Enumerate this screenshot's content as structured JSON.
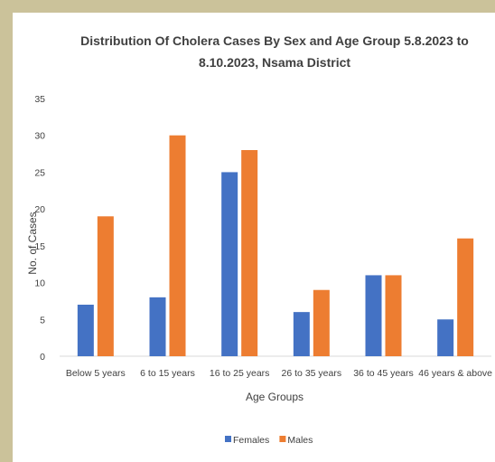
{
  "chart_data": {
    "type": "bar",
    "title_lines": [
      "Distribution Of Cholera Cases  By Sex and Age Group  5.8.2023 to",
      "8.10.2023, Nsama District"
    ],
    "xlabel": "Age Groups",
    "ylabel": "No. of Cases",
    "ylim": [
      0,
      35
    ],
    "yticks": [
      0,
      5,
      10,
      15,
      20,
      25,
      30,
      35
    ],
    "grid": false,
    "legend_position": "bottom",
    "categories": [
      "Below 5 years",
      "6 to 15 years",
      "16 to 25 years",
      "26 to 35 years",
      "36 to 45 years",
      "46 years & above"
    ],
    "series": [
      {
        "name": "Females",
        "color": "#4472c4",
        "values": [
          7,
          8,
          25,
          6,
          11,
          5
        ]
      },
      {
        "name": "Males",
        "color": "#ed7d31",
        "values": [
          19,
          30,
          28,
          9,
          11,
          16
        ]
      }
    ]
  }
}
